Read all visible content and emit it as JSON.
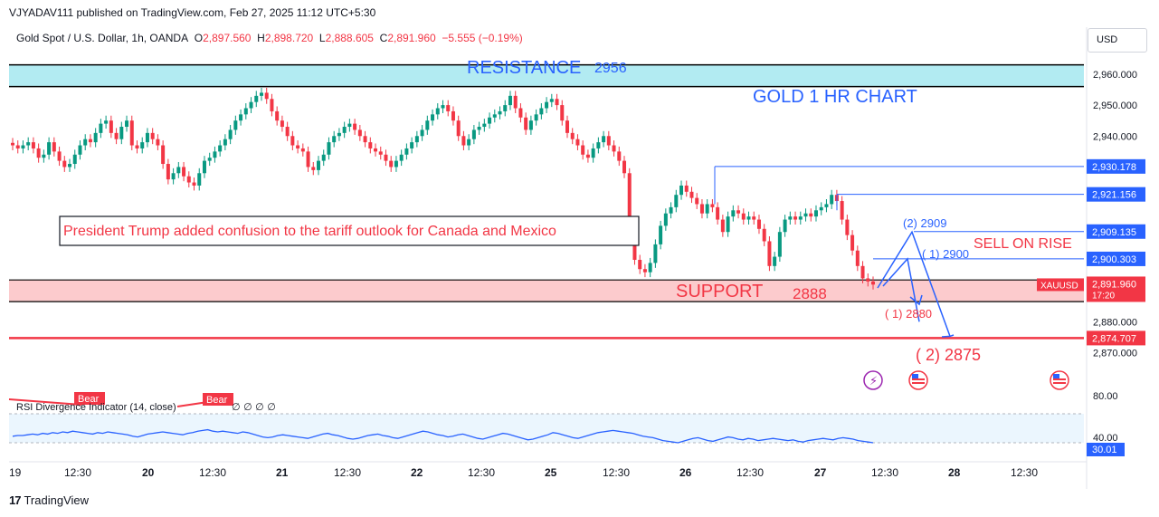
{
  "header": {
    "publisher": "VJYADAV111 published on TradingView.com, Feb 27, 2025 11:12 UTC+5:30"
  },
  "symbol_bar": {
    "name": "Gold Spot / U.S. Dollar, 1h, OANDA",
    "o_label": "O",
    "o": "2,897.560",
    "h_label": "H",
    "h": "2,898.720",
    "l_label": "L",
    "l": "2,888.605",
    "c_label": "C",
    "c": "2,891.960",
    "change": "−5.555 (−0.19%)"
  },
  "currency": "USD",
  "annotations": {
    "resistance": "RESISTANCE",
    "resistance_value": "2956",
    "title": "GOLD 1 HR CHART",
    "news": "President Trump added confusion to the tariff outlook for Canada and Mexico",
    "support": "SUPPORT",
    "support_value": "2888",
    "sell": "SELL ON RISE",
    "t2909": "(2) 2909",
    "t2900": "( 1) 2900",
    "t2880": "( 1) 2880",
    "t2875": "( 2) 2875"
  },
  "price_axis": {
    "ticks": [
      "2,960.000",
      "2,950.000",
      "2,940.000",
      "2,880.000",
      "2,870.000"
    ],
    "tags": [
      {
        "text": "2,930.178",
        "color": "#2962ff"
      },
      {
        "text": "2,921.156",
        "color": "#2962ff"
      },
      {
        "text": "2,909.135",
        "color": "#2962ff"
      },
      {
        "text": "2,900.303",
        "color": "#2962ff"
      },
      {
        "text": "2,874.707",
        "color": "#f23645"
      }
    ],
    "last_price": "2,891.960",
    "countdown": "17:20",
    "symbol_tag": "XAUUSD"
  },
  "rsi": {
    "label": "RSI Divergence Indicator (14, close)",
    "value_label": "30.01",
    "ticks": [
      "80.00",
      "40.00"
    ],
    "bear_labels": [
      "Bear",
      "Bear"
    ],
    "na_values": "∅ ∅ ∅ ∅",
    "values": [
      39,
      40,
      40,
      41,
      42,
      41,
      43,
      42,
      44,
      43,
      45,
      44,
      46,
      45,
      44,
      43,
      42,
      44,
      43,
      45,
      44,
      43,
      42,
      41,
      39,
      38,
      40,
      42,
      43,
      44,
      45,
      44,
      43,
      42,
      41,
      43,
      44,
      46,
      47,
      48,
      46,
      45,
      46,
      45,
      44,
      43,
      45,
      44,
      42,
      40,
      38,
      37,
      38,
      40,
      41,
      40,
      39,
      38,
      37,
      36,
      38,
      40,
      42,
      43,
      41,
      40,
      38,
      36,
      35,
      36,
      38,
      40,
      41,
      42,
      40,
      39,
      37,
      36,
      38,
      40,
      42,
      44,
      46,
      45,
      43,
      41,
      40,
      38,
      39,
      41,
      42,
      40,
      38,
      36,
      35,
      37,
      39,
      41,
      43,
      42,
      40,
      38,
      36,
      34,
      35,
      37,
      39,
      41,
      44,
      43,
      41,
      39,
      37,
      36,
      38,
      40,
      42,
      44,
      45,
      46,
      47,
      46,
      45,
      44,
      43,
      41,
      39,
      38,
      37,
      35,
      33,
      32,
      31,
      30,
      32,
      34,
      36,
      37,
      35,
      33,
      32,
      34,
      36,
      38,
      37,
      35,
      34,
      36,
      35,
      33,
      34,
      35,
      36,
      35,
      34,
      33,
      34,
      32,
      31,
      33,
      34,
      35,
      36,
      35,
      34,
      36,
      37,
      36,
      35,
      33,
      32,
      31,
      30
    ]
  },
  "time_axis": {
    "labels": [
      "19",
      "12:30",
      "20",
      "12:30",
      "21",
      "12:30",
      "22",
      "12:30",
      "25",
      "12:30",
      "26",
      "12:30",
      "27",
      "12:30",
      "28",
      "12:30"
    ],
    "bold": [
      false,
      false,
      true,
      false,
      true,
      false,
      true,
      false,
      true,
      false,
      true,
      false,
      true,
      false,
      true,
      false
    ]
  },
  "colors": {
    "up": "#089981",
    "down": "#f23645",
    "line": "#2962ff",
    "resistance_fill": "#b2ebf2",
    "support_fill": "#fccbcd"
  },
  "chart_data": {
    "type": "candlestick",
    "title": "GOLD 1 HR CHART",
    "instrument": "XAUUSD",
    "ylim": [
      2864,
      2967
    ],
    "resistance": 2956,
    "support": 2888,
    "hlines": [
      2930.178,
      2921.156,
      2909.135,
      2900.303,
      2874.707
    ],
    "series": [
      {
        "name": "XAUUSD",
        "close": [
          2937,
          2936,
          2937,
          2938,
          2936,
          2933,
          2934,
          2938,
          2935,
          2932,
          2930,
          2931,
          2934,
          2937,
          2939,
          2938,
          2941,
          2944,
          2945,
          2941,
          2939,
          2943,
          2945,
          2937,
          2936,
          2938,
          2941,
          2939,
          2937,
          2931,
          2926,
          2928,
          2930,
          2927,
          2925,
          2924,
          2928,
          2932,
          2933,
          2935,
          2937,
          2939,
          2942,
          2945,
          2947,
          2949,
          2951,
          2953,
          2954,
          2952,
          2948,
          2945,
          2943,
          2940,
          2937,
          2936,
          2935,
          2930,
          2929,
          2932,
          2934,
          2938,
          2940,
          2941,
          2943,
          2944,
          2942,
          2940,
          2938,
          2936,
          2935,
          2934,
          2932,
          2930,
          2932,
          2934,
          2936,
          2938,
          2940,
          2942,
          2945,
          2947,
          2949,
          2950,
          2948,
          2945,
          2940,
          2937,
          2939,
          2942,
          2943,
          2944,
          2946,
          2947,
          2948,
          2950,
          2953,
          2949,
          2946,
          2942,
          2945,
          2947,
          2949,
          2951,
          2952,
          2950,
          2945,
          2941,
          2939,
          2937,
          2934,
          2933,
          2936,
          2938,
          2940,
          2937,
          2935,
          2932,
          2928,
          2912,
          2900,
          2897,
          2896,
          2899,
          2905,
          2911,
          2915,
          2917,
          2921,
          2924,
          2922,
          2920,
          2918,
          2915,
          2918,
          2917,
          2913,
          2909,
          2914,
          2916,
          2915,
          2913,
          2914,
          2913,
          2910,
          2906,
          2898,
          2901,
          2909,
          2913,
          2914,
          2913,
          2914,
          2915,
          2914,
          2916,
          2917,
          2918,
          2921,
          2919,
          2913,
          2908,
          2903,
          2898,
          2894,
          2893,
          2892
        ]
      }
    ]
  }
}
